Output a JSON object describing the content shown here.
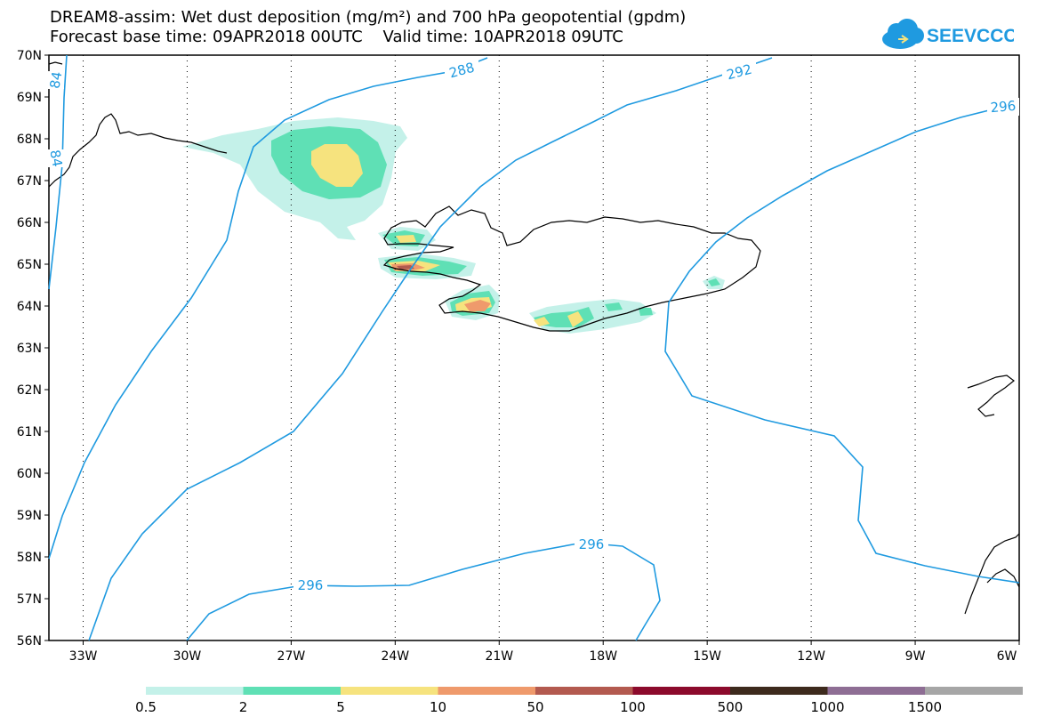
{
  "header": {
    "title_line1": "DREAM8-assim: Wet dust deposition (mg/m²) and 700 hPa geopotential (gpdm)",
    "title_line2": "Forecast base time: 09APR2018 00UTC    Valid time: 10APR2018 09UTC"
  },
  "logo": {
    "text": "SEEVCCC",
    "icon": "cloud-icon",
    "color": "#1f9ae0"
  },
  "map": {
    "lat_labels": [
      "70N",
      "69N",
      "68N",
      "67N",
      "66N",
      "65N",
      "64N",
      "63N",
      "62N",
      "61N",
      "60N",
      "59N",
      "58N",
      "57N",
      "56N"
    ],
    "lon_labels": [
      "33W",
      "30W",
      "27W",
      "24W",
      "21W",
      "18W",
      "15W",
      "12W",
      "9W",
      "6W"
    ],
    "contour_color": "#1f9ae0",
    "contour_labels": [
      "84",
      "84",
      "288",
      "292",
      "296",
      "296",
      "296"
    ]
  },
  "legend": {
    "colors": [
      "#c4f1e9",
      "#5fe0b5",
      "#f6e37e",
      "#ef9a6c",
      "#b35a4f",
      "#8c0a2c",
      "#3d2a1d",
      "#8e6e94",
      "#a6a6a6"
    ],
    "labels": [
      "0.5",
      "2",
      "5",
      "10",
      "50",
      "100",
      "500",
      "1000",
      "1500"
    ]
  }
}
